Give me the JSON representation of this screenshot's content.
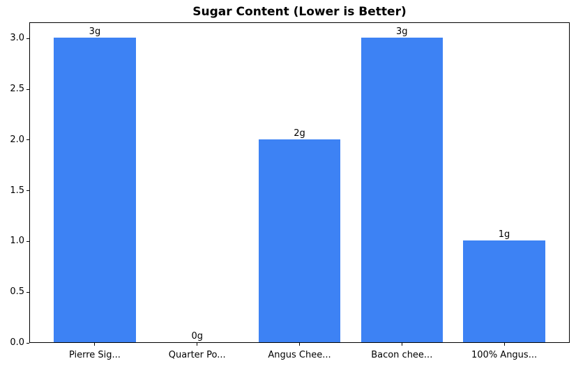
{
  "figure": {
    "background": "#ffffff"
  },
  "chart_data": {
    "type": "bar",
    "title": "Sugar Content (Lower is Better)",
    "categories": [
      "Pierre Sig...",
      "Quarter Po...",
      "Angus Chee...",
      "Bacon chee...",
      "100% Angus..."
    ],
    "values": [
      3,
      0,
      2,
      3,
      1
    ],
    "bar_labels": [
      "3g",
      "0g",
      "2g",
      "3g",
      "1g"
    ],
    "y_ticks": [
      {
        "value": 0.0,
        "label": "0.0"
      },
      {
        "value": 0.5,
        "label": "0.5"
      },
      {
        "value": 1.0,
        "label": "1.0"
      },
      {
        "value": 1.5,
        "label": "1.5"
      },
      {
        "value": 2.0,
        "label": "2.0"
      },
      {
        "value": 2.5,
        "label": "2.5"
      },
      {
        "value": 3.0,
        "label": "3.0"
      }
    ],
    "ylim": [
      0,
      3.16
    ],
    "xlabel": "",
    "ylabel": "",
    "grid": false,
    "legend": "none",
    "bar_color": "#3d82f4",
    "axis_color": "#000000",
    "text_color": "#000000"
  }
}
